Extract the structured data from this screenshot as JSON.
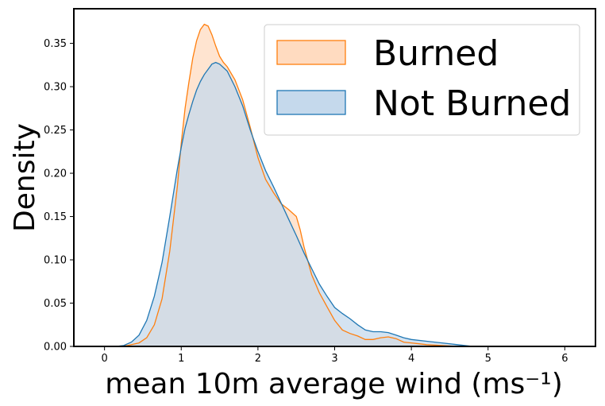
{
  "chart_data": {
    "type": "area",
    "xlabel": "mean 10m average wind (ms⁻¹)",
    "ylabel": "Density",
    "xlim": [
      -0.4,
      6.4
    ],
    "ylim": [
      0,
      0.39
    ],
    "xticks": [
      "0",
      "1",
      "2",
      "3",
      "4",
      "5",
      "6"
    ],
    "yticks": [
      "0.00",
      "0.05",
      "0.10",
      "0.15",
      "0.20",
      "0.25",
      "0.30",
      "0.35"
    ],
    "grid": false,
    "legend_position": "top-right",
    "series": [
      {
        "name": "Burned",
        "line_color": "#ff7f0e",
        "fill_color": "#ffdbc0",
        "points": [
          [
            0.15,
            0
          ],
          [
            0.3,
            0.001
          ],
          [
            0.45,
            0.004
          ],
          [
            0.55,
            0.01
          ],
          [
            0.65,
            0.025
          ],
          [
            0.75,
            0.055
          ],
          [
            0.85,
            0.11
          ],
          [
            0.95,
            0.185
          ],
          [
            1.0,
            0.235
          ],
          [
            1.05,
            0.275
          ],
          [
            1.1,
            0.305
          ],
          [
            1.15,
            0.333
          ],
          [
            1.2,
            0.353
          ],
          [
            1.25,
            0.366
          ],
          [
            1.3,
            0.372
          ],
          [
            1.35,
            0.37
          ],
          [
            1.4,
            0.36
          ],
          [
            1.45,
            0.347
          ],
          [
            1.5,
            0.335
          ],
          [
            1.55,
            0.328
          ],
          [
            1.6,
            0.323
          ],
          [
            1.7,
            0.308
          ],
          [
            1.8,
            0.285
          ],
          [
            1.9,
            0.253
          ],
          [
            2.0,
            0.218
          ],
          [
            2.1,
            0.193
          ],
          [
            2.2,
            0.178
          ],
          [
            2.3,
            0.165
          ],
          [
            2.4,
            0.158
          ],
          [
            2.5,
            0.15
          ],
          [
            2.55,
            0.135
          ],
          [
            2.6,
            0.115
          ],
          [
            2.7,
            0.083
          ],
          [
            2.8,
            0.062
          ],
          [
            2.9,
            0.046
          ],
          [
            3.0,
            0.03
          ],
          [
            3.1,
            0.019
          ],
          [
            3.2,
            0.015
          ],
          [
            3.3,
            0.012
          ],
          [
            3.4,
            0.008
          ],
          [
            3.5,
            0.008
          ],
          [
            3.6,
            0.01
          ],
          [
            3.7,
            0.011
          ],
          [
            3.8,
            0.009
          ],
          [
            3.9,
            0.005
          ],
          [
            4.0,
            0.004
          ],
          [
            4.1,
            0.003
          ],
          [
            4.2,
            0.002
          ],
          [
            4.4,
            0.001
          ],
          [
            4.6,
            0
          ]
        ]
      },
      {
        "name": "Not Burned",
        "line_color": "#1f77b4",
        "fill_color": "#c5d9ec",
        "points": [
          [
            0.15,
            0
          ],
          [
            0.25,
            0.001
          ],
          [
            0.35,
            0.005
          ],
          [
            0.45,
            0.013
          ],
          [
            0.55,
            0.03
          ],
          [
            0.65,
            0.058
          ],
          [
            0.75,
            0.097
          ],
          [
            0.85,
            0.15
          ],
          [
            0.95,
            0.205
          ],
          [
            1.0,
            0.23
          ],
          [
            1.05,
            0.252
          ],
          [
            1.1,
            0.268
          ],
          [
            1.15,
            0.283
          ],
          [
            1.2,
            0.296
          ],
          [
            1.25,
            0.306
          ],
          [
            1.3,
            0.314
          ],
          [
            1.35,
            0.32
          ],
          [
            1.4,
            0.326
          ],
          [
            1.45,
            0.328
          ],
          [
            1.5,
            0.326
          ],
          [
            1.6,
            0.318
          ],
          [
            1.7,
            0.3
          ],
          [
            1.8,
            0.278
          ],
          [
            1.9,
            0.25
          ],
          [
            2.0,
            0.225
          ],
          [
            2.1,
            0.203
          ],
          [
            2.2,
            0.185
          ],
          [
            2.3,
            0.166
          ],
          [
            2.4,
            0.147
          ],
          [
            2.5,
            0.128
          ],
          [
            2.6,
            0.108
          ],
          [
            2.7,
            0.09
          ],
          [
            2.8,
            0.072
          ],
          [
            2.9,
            0.058
          ],
          [
            3.0,
            0.045
          ],
          [
            3.1,
            0.038
          ],
          [
            3.2,
            0.032
          ],
          [
            3.3,
            0.025
          ],
          [
            3.4,
            0.019
          ],
          [
            3.5,
            0.017
          ],
          [
            3.6,
            0.017
          ],
          [
            3.7,
            0.016
          ],
          [
            3.8,
            0.013
          ],
          [
            3.9,
            0.01
          ],
          [
            4.0,
            0.008
          ],
          [
            4.2,
            0.006
          ],
          [
            4.4,
            0.004
          ],
          [
            4.6,
            0.002
          ],
          [
            4.8,
            0
          ]
        ]
      }
    ]
  }
}
